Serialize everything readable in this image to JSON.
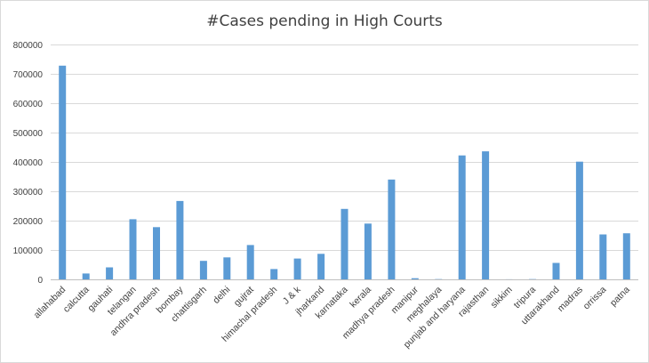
{
  "chart_data": {
    "type": "bar",
    "title": "#Cases pending in High Courts",
    "xlabel": "",
    "ylabel": "",
    "ylim": [
      0,
      800000
    ],
    "yticks": [
      0,
      100000,
      200000,
      300000,
      400000,
      500000,
      600000,
      700000,
      800000
    ],
    "ytick_labels": [
      "0",
      "100000",
      "200000",
      "300000",
      "400000",
      "500000",
      "600000",
      "700000",
      "800000"
    ],
    "grid": true,
    "legend": "none",
    "bar_color": "#5b9bd5",
    "categories": [
      "allahabad",
      "calcutta",
      "gauhati",
      "telangan",
      "andhra pradesh",
      "bombay",
      "chattisgarh",
      "delhi",
      "gujrat",
      "himachal pradesh",
      "J & k",
      "jharkand",
      "karnataka",
      "kerala",
      "madhya pradesh",
      "manipur",
      "meghalaya",
      "punjab and haryana",
      "rajasthan",
      "sikkim",
      "tripura",
      "uttarakhand",
      "madras",
      "orrissa",
      "patna"
    ],
    "values": [
      728000,
      20000,
      41000,
      205000,
      178000,
      267000,
      63000,
      75000,
      117000,
      35000,
      71000,
      87000,
      240000,
      190000,
      340000,
      4000,
      1000,
      422000,
      436000,
      300,
      1000,
      56000,
      401000,
      153000,
      157000
    ]
  }
}
